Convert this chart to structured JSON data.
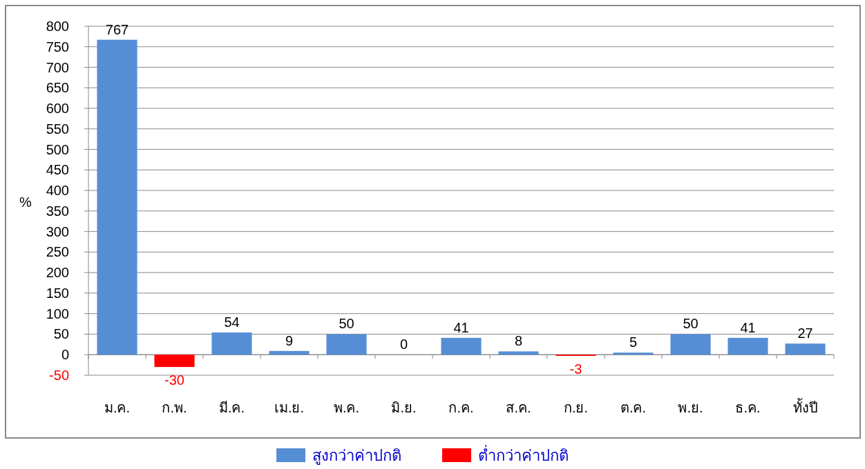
{
  "chart_data": {
    "type": "bar",
    "ylabel": "%",
    "categories": [
      "ม.ค.",
      "ก.พ.",
      "มี.ค.",
      "เม.ย.",
      "พ.ค.",
      "มิ.ย.",
      "ก.ค.",
      "ส.ค.",
      "ก.ย.",
      "ต.ค.",
      "พ.ย.",
      "ธ.ค.",
      "ทั้งปี"
    ],
    "series": [
      {
        "name": "สูงกว่าค่าปกติ",
        "color": "#558ed5",
        "values": [
          767,
          null,
          54,
          9,
          50,
          0,
          41,
          8,
          null,
          5,
          50,
          41,
          27
        ]
      },
      {
        "name": "ต่ำกว่าค่าปกติ",
        "color": "#ff0000",
        "values": [
          null,
          -30,
          null,
          null,
          null,
          null,
          null,
          null,
          -3,
          null,
          null,
          null,
          null
        ]
      }
    ],
    "stacked": true,
    "data_labels": true,
    "ylim": [
      -50,
      800
    ],
    "yticks": [
      -50,
      0,
      50,
      100,
      150,
      200,
      250,
      300,
      350,
      400,
      450,
      500,
      550,
      600,
      650,
      700,
      750,
      800
    ],
    "grid": "y",
    "legend": "bottom"
  }
}
